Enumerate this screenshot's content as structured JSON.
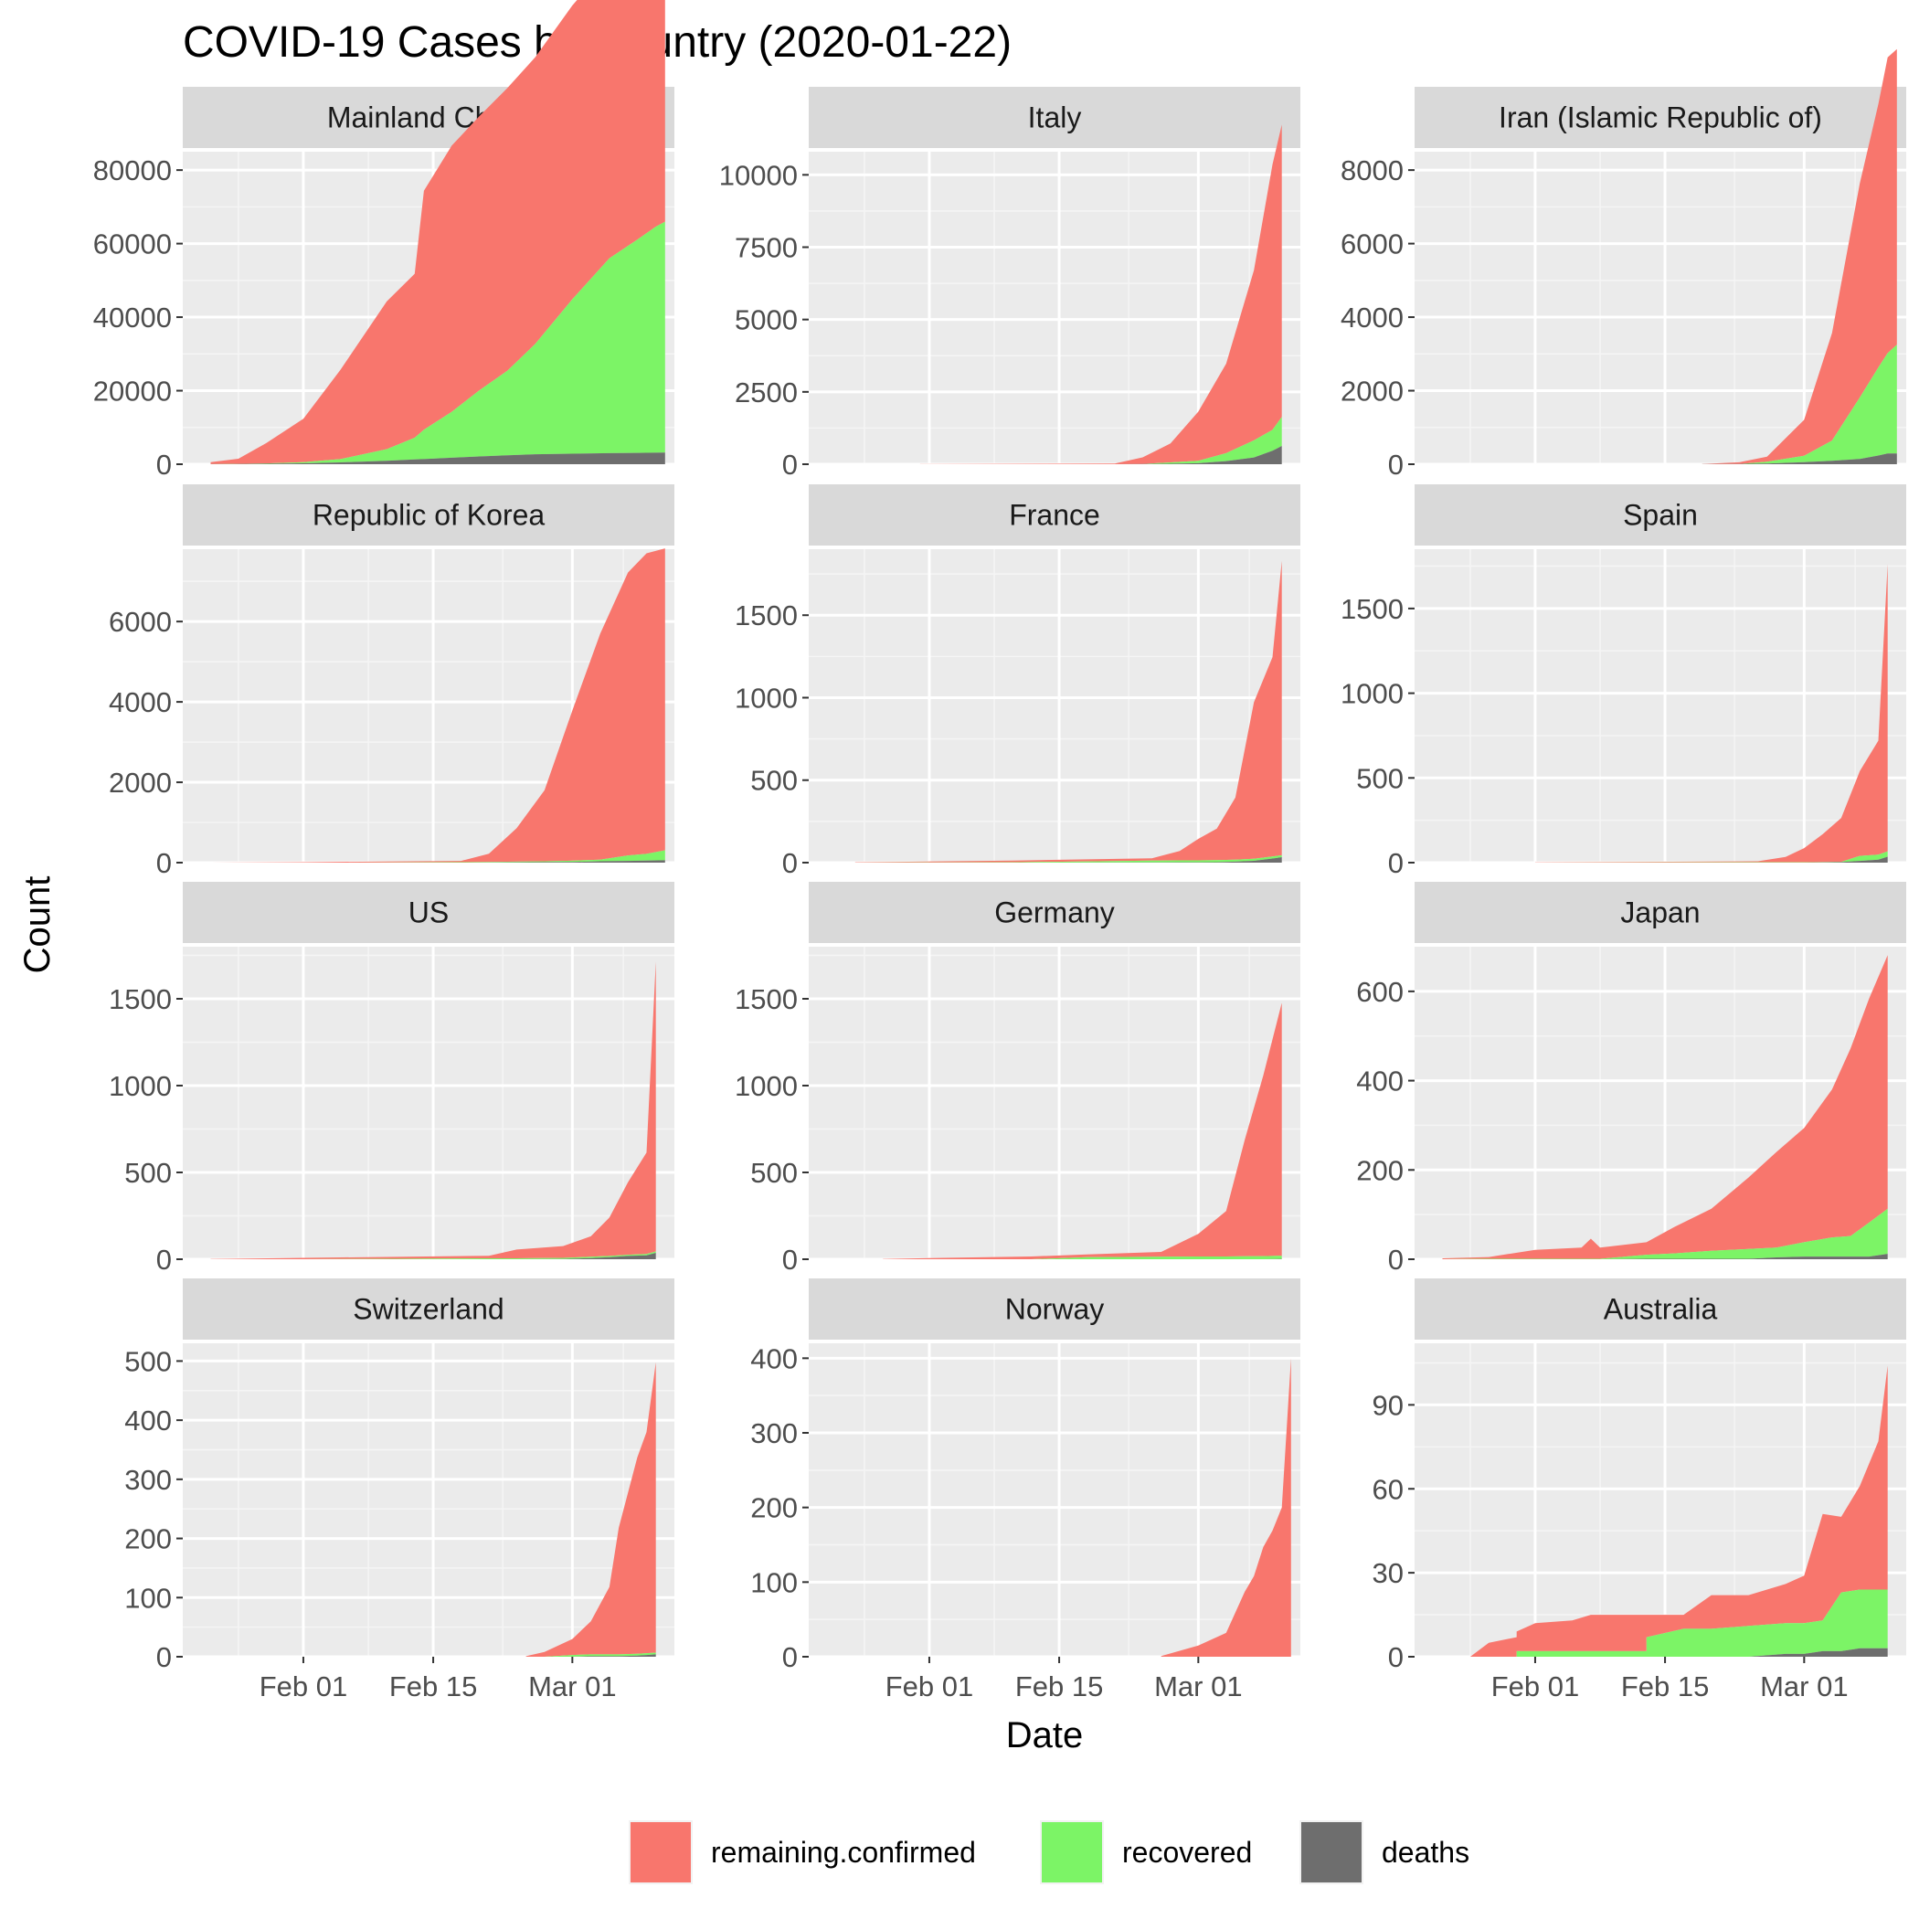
{
  "chart_data": {
    "type": "area",
    "stacked": true,
    "title": "COVID-19 Cases by Country (2020-01-22)",
    "xlabel": "Date",
    "ylabel": "Count",
    "xlim": [
      "2020-01-19",
      "2020-03-12"
    ],
    "x_ticks": [
      {
        "date": "2020-02-01",
        "label": "Feb 01"
      },
      {
        "date": "2020-02-15",
        "label": "Feb 15"
      },
      {
        "date": "2020-03-01",
        "label": "Mar 01"
      }
    ],
    "grid": true,
    "legend_position": "bottom",
    "series_meta": [
      {
        "name": "remaining.confirmed",
        "color": "#F8766D"
      },
      {
        "name": "recovered",
        "color": "#7CF466"
      },
      {
        "name": "deaths",
        "color": "#6E6E6E"
      }
    ],
    "facets": [
      {
        "name": "Mainland China",
        "ylim": [
          0,
          85000
        ],
        "y_ticks": [
          0,
          20000,
          40000,
          60000,
          80000
        ],
        "start_date": "2020-01-22",
        "points": [
          [
            "2020-01-22",
            550,
            0,
            17
          ],
          [
            "2020-01-25",
            1400,
            50,
            40
          ],
          [
            "2020-01-28",
            5500,
            100,
            130
          ],
          [
            "2020-02-01",
            11800,
            300,
            260
          ],
          [
            "2020-02-05",
            24300,
            900,
            490
          ],
          [
            "2020-02-10",
            40200,
            3200,
            910
          ],
          [
            "2020-02-13",
            44600,
            5900,
            1300
          ],
          [
            "2020-02-14",
            65000,
            8000,
            1380
          ],
          [
            "2020-02-17",
            72400,
            12500,
            1770
          ],
          [
            "2020-02-20",
            74600,
            18000,
            2120
          ],
          [
            "2020-02-23",
            76900,
            23000,
            2440
          ],
          [
            "2020-02-26",
            78000,
            30000,
            2700
          ],
          [
            "2020-03-01",
            79900,
            42000,
            2870
          ],
          [
            "2020-03-05",
            80400,
            53000,
            3010
          ],
          [
            "2020-03-08",
            80700,
            58000,
            3070
          ],
          [
            "2020-03-10",
            80800,
            61500,
            3120
          ],
          [
            "2020-03-11",
            80800,
            62800,
            3160
          ]
        ]
      },
      {
        "name": "Italy",
        "ylim": [
          0,
          10800
        ],
        "y_ticks": [
          0,
          2500,
          5000,
          7500,
          10000
        ],
        "start_date": "2020-01-31",
        "points": [
          [
            "2020-01-31",
            2,
            0,
            0
          ],
          [
            "2020-02-21",
            20,
            0,
            1
          ],
          [
            "2020-02-24",
            230,
            1,
            7
          ],
          [
            "2020-02-27",
            655,
            45,
            17
          ],
          [
            "2020-03-01",
            1700,
            83,
            34
          ],
          [
            "2020-03-04",
            3090,
            276,
            107
          ],
          [
            "2020-03-07",
            5880,
            590,
            233
          ],
          [
            "2020-03-09",
            9170,
            724,
            463
          ],
          [
            "2020-03-10",
            10100,
            1004,
            631
          ]
        ]
      },
      {
        "name": "Iran (Islamic Republic of)",
        "ylim": [
          0,
          8500
        ],
        "y_ticks": [
          0,
          2000,
          4000,
          6000,
          8000
        ],
        "start_date": "2020-02-19",
        "points": [
          [
            "2020-02-19",
            2,
            0,
            2
          ],
          [
            "2020-02-23",
            43,
            0,
            8
          ],
          [
            "2020-02-26",
            139,
            49,
            19
          ],
          [
            "2020-03-01",
            978,
            175,
            54
          ],
          [
            "2020-03-04",
            2922,
            552,
            92
          ],
          [
            "2020-03-07",
            5823,
            1669,
            145
          ],
          [
            "2020-03-09",
            7161,
            2394,
            237
          ],
          [
            "2020-03-10",
            8042,
            2731,
            291
          ],
          [
            "2020-03-11",
            8042,
            2959,
            291
          ]
        ]
      },
      {
        "name": "Republic of Korea",
        "ylim": [
          0,
          7800
        ],
        "y_ticks": [
          0,
          2000,
          4000,
          6000
        ],
        "start_date": "2020-01-22",
        "points": [
          [
            "2020-01-22",
            1,
            0,
            0
          ],
          [
            "2020-02-01",
            12,
            0,
            0
          ],
          [
            "2020-02-10",
            27,
            3,
            0
          ],
          [
            "2020-02-18",
            31,
            12,
            0
          ],
          [
            "2020-02-21",
            204,
            16,
            2
          ],
          [
            "2020-02-24",
            833,
            18,
            8
          ],
          [
            "2020-02-27",
            1766,
            22,
            13
          ],
          [
            "2020-03-01",
            3736,
            30,
            17
          ],
          [
            "2020-03-04",
            5621,
            41,
            35
          ],
          [
            "2020-03-07",
            7041,
            135,
            44
          ],
          [
            "2020-03-09",
            7478,
            166,
            53
          ],
          [
            "2020-03-11",
            7513,
            247,
            60
          ]
        ]
      },
      {
        "name": "France",
        "ylim": [
          0,
          1900
        ],
        "y_ticks": [
          0,
          500,
          1000,
          1500
        ],
        "start_date": "2020-01-24",
        "points": [
          [
            "2020-01-24",
            2,
            0,
            0
          ],
          [
            "2020-02-10",
            11,
            2,
            0
          ],
          [
            "2020-02-25",
            14,
            11,
            1
          ],
          [
            "2020-02-28",
            57,
            12,
            2
          ],
          [
            "2020-03-01",
            130,
            12,
            2
          ],
          [
            "2020-03-03",
            191,
            12,
            3
          ],
          [
            "2020-03-05",
            377,
            12,
            6
          ],
          [
            "2020-03-07",
            949,
            12,
            11
          ],
          [
            "2020-03-09",
            1209,
            12,
            25
          ],
          [
            "2020-03-10",
            1784,
            12,
            33
          ]
        ]
      },
      {
        "name": "Spain",
        "ylim": [
          0,
          1850
        ],
        "y_ticks": [
          0,
          500,
          1000,
          1500
        ],
        "start_date": "2020-02-01",
        "points": [
          [
            "2020-02-01",
            1,
            0,
            0
          ],
          [
            "2020-02-25",
            6,
            2,
            0
          ],
          [
            "2020-02-28",
            32,
            2,
            0
          ],
          [
            "2020-03-01",
            84,
            2,
            0
          ],
          [
            "2020-03-03",
            165,
            2,
            1
          ],
          [
            "2020-03-05",
            259,
            2,
            3
          ],
          [
            "2020-03-07",
            500,
            30,
            10
          ],
          [
            "2020-03-09",
            673,
            30,
            17
          ],
          [
            "2020-03-10",
            1695,
            32,
            35
          ]
        ]
      },
      {
        "name": "US",
        "ylim": [
          0,
          1800
        ],
        "y_ticks": [
          0,
          500,
          1000,
          1500
        ],
        "start_date": "2020-01-22",
        "points": [
          [
            "2020-01-22",
            1,
            0,
            0
          ],
          [
            "2020-02-01",
            8,
            0,
            0
          ],
          [
            "2020-02-21",
            15,
            5,
            0
          ],
          [
            "2020-02-24",
            51,
            5,
            0
          ],
          [
            "2020-02-29",
            68,
            7,
            1
          ],
          [
            "2020-03-03",
            118,
            7,
            7
          ],
          [
            "2020-03-05",
            221,
            7,
            12
          ],
          [
            "2020-03-07",
            417,
            7,
            19
          ],
          [
            "2020-03-09",
            584,
            8,
            22
          ],
          [
            "2020-03-10",
            1670,
            8,
            37
          ]
        ]
      },
      {
        "name": "Germany",
        "ylim": [
          0,
          1800
        ],
        "y_ticks": [
          0,
          500,
          1000,
          1500
        ],
        "start_date": "2020-01-27",
        "points": [
          [
            "2020-01-27",
            1,
            0,
            0
          ],
          [
            "2020-02-01",
            7,
            0,
            0
          ],
          [
            "2020-02-12",
            16,
            0,
            0
          ],
          [
            "2020-02-18",
            16,
            12,
            0
          ],
          [
            "2020-02-26",
            27,
            15,
            0
          ],
          [
            "2020-03-01",
            130,
            16,
            0
          ],
          [
            "2020-03-04",
            262,
            16,
            0
          ],
          [
            "2020-03-06",
            670,
            17,
            0
          ],
          [
            "2020-03-08",
            1040,
            18,
            0
          ],
          [
            "2020-03-10",
            1457,
            18,
            2
          ]
        ]
      },
      {
        "name": "Japan",
        "ylim": [
          0,
          700
        ],
        "y_ticks": [
          0,
          200,
          400,
          600
        ],
        "start_date": "2020-01-22",
        "points": [
          [
            "2020-01-22",
            2,
            0,
            0
          ],
          [
            "2020-01-27",
            4,
            1,
            0
          ],
          [
            "2020-02-01",
            20,
            1,
            0
          ],
          [
            "2020-02-06",
            25,
            1,
            0
          ],
          [
            "2020-02-07",
            45,
            1,
            0
          ],
          [
            "2020-02-08",
            25,
            1,
            0
          ],
          [
            "2020-02-13",
            28,
            9,
            1
          ],
          [
            "2020-02-16",
            59,
            12,
            1
          ],
          [
            "2020-02-20",
            94,
            18,
            1
          ],
          [
            "2020-02-24",
            160,
            22,
            1
          ],
          [
            "2020-02-27",
            214,
            22,
            4
          ],
          [
            "2020-03-01",
            256,
            32,
            6
          ],
          [
            "2020-03-04",
            331,
            43,
            6
          ],
          [
            "2020-03-06",
            420,
            46,
            6
          ],
          [
            "2020-03-08",
            502,
            76,
            6
          ],
          [
            "2020-03-10",
            568,
            101,
            12
          ]
        ]
      },
      {
        "name": "Switzerland",
        "ylim": [
          0,
          530
        ],
        "y_ticks": [
          0,
          100,
          200,
          300,
          400,
          500
        ],
        "start_date": "2020-02-25",
        "points": [
          [
            "2020-02-25",
            1,
            0,
            0
          ],
          [
            "2020-02-27",
            8,
            0,
            0
          ],
          [
            "2020-03-01",
            27,
            3,
            0
          ],
          [
            "2020-03-03",
            56,
            3,
            1
          ],
          [
            "2020-03-05",
            114,
            3,
            1
          ],
          [
            "2020-03-06",
            214,
            3,
            1
          ],
          [
            "2020-03-08",
            332,
            3,
            2
          ],
          [
            "2020-03-09",
            374,
            3,
            3
          ],
          [
            "2020-03-10",
            491,
            3,
            4
          ]
        ]
      },
      {
        "name": "Norway",
        "ylim": [
          0,
          420
        ],
        "y_ticks": [
          0,
          100,
          200,
          300,
          400
        ],
        "start_date": "2020-02-26",
        "points": [
          [
            "2020-02-26",
            1,
            0,
            0
          ],
          [
            "2020-03-01",
            15,
            0,
            0
          ],
          [
            "2020-03-04",
            32,
            0,
            0
          ],
          [
            "2020-03-06",
            87,
            0,
            0
          ],
          [
            "2020-03-07",
            108,
            0,
            0
          ],
          [
            "2020-03-08",
            147,
            0,
            0
          ],
          [
            "2020-03-09",
            169,
            0,
            0
          ],
          [
            "2020-03-10",
            200,
            0,
            0
          ],
          [
            "2020-03-11",
            400,
            0,
            0
          ]
        ]
      },
      {
        "name": "Australia",
        "ylim": [
          0,
          112
        ],
        "y_ticks": [
          0,
          30,
          60,
          90
        ],
        "start_date": "2020-01-25",
        "points": [
          [
            "2020-01-25",
            0,
            0,
            0
          ],
          [
            "2020-01-27",
            5,
            0,
            0
          ],
          [
            "2020-01-30",
            7,
            0,
            0
          ],
          [
            "2020-01-30",
            7,
            2,
            0
          ],
          [
            "2020-02-01",
            10,
            2,
            0
          ],
          [
            "2020-02-05",
            11,
            2,
            0
          ],
          [
            "2020-02-07",
            13,
            2,
            0
          ],
          [
            "2020-02-13",
            13,
            2,
            0
          ],
          [
            "2020-02-13",
            8,
            7,
            0
          ],
          [
            "2020-02-17",
            5,
            10,
            0
          ],
          [
            "2020-02-20",
            12,
            10,
            0
          ],
          [
            "2020-02-24",
            11,
            11,
            0
          ],
          [
            "2020-02-28",
            14,
            11,
            1
          ],
          [
            "2020-03-01",
            17,
            11,
            1
          ],
          [
            "2020-03-03",
            38,
            11,
            2
          ],
          [
            "2020-03-05",
            27,
            21,
            2
          ],
          [
            "2020-03-07",
            37,
            21,
            3
          ],
          [
            "2020-03-09",
            53,
            21,
            3
          ],
          [
            "2020-03-10",
            80,
            21,
            3
          ]
        ]
      }
    ]
  }
}
